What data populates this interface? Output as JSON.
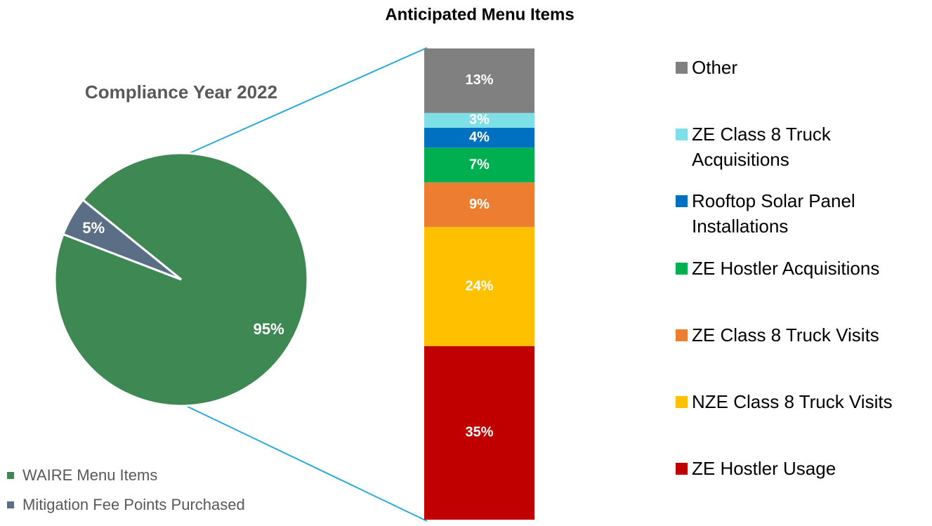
{
  "chart_data": [
    {
      "type": "pie",
      "title": "Compliance Year 2022",
      "categories": [
        "WAIRE Menu Items",
        "Mitigation Fee Points Purchased"
      ],
      "values": [
        95,
        5
      ],
      "value_labels": [
        "95%",
        "5%"
      ],
      "colors": [
        "#3e8853",
        "#5a6e86"
      ]
    },
    {
      "type": "stacked-bar",
      "title": "Anticipated Menu Items",
      "series": [
        {
          "name": "ZE Hostler Usage",
          "color": "#c00000",
          "values": [
            35
          ],
          "value_labels": [
            "35%"
          ]
        },
        {
          "name": "NZE Class 8 Truck Visits",
          "color": "#ffc000",
          "values": [
            24
          ],
          "value_labels": [
            "24%"
          ]
        },
        {
          "name": "ZE Class 8 Truck Visits",
          "color": "#ed7d31",
          "values": [
            9
          ],
          "value_labels": [
            "9%"
          ]
        },
        {
          "name": "ZE Hostler Acquisitions",
          "color": "#00b050",
          "values": [
            7
          ],
          "value_labels": [
            "7%"
          ]
        },
        {
          "name": "Rooftop Solar Panel Installations",
          "color": "#0070c0",
          "values": [
            4
          ],
          "value_labels": [
            "4%"
          ]
        },
        {
          "name": "ZE Class 8 Truck Acquisitions",
          "color": "#7fdfe6",
          "values": [
            3
          ],
          "value_labels": [
            "3%"
          ]
        },
        {
          "name": "Other",
          "color": "#808080",
          "values": [
            13
          ],
          "value_labels": [
            "13%"
          ]
        }
      ]
    }
  ]
}
